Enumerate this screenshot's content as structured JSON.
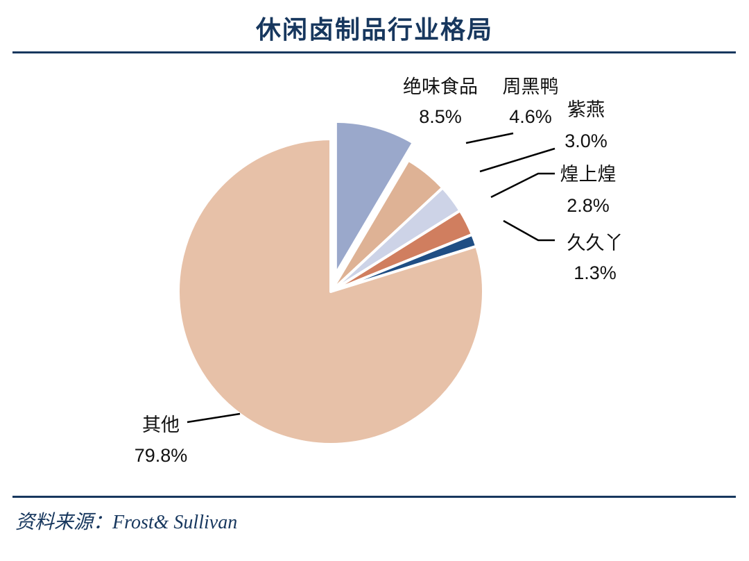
{
  "header": {
    "title": "休闲卤制品行业格局"
  },
  "footer": {
    "source_label": "资料来源：",
    "source_value": "Frost& Sullivan"
  },
  "chart_data": {
    "type": "pie",
    "slices": [
      {
        "label": "绝味食品",
        "value": 8.5,
        "value_label": "8.5%",
        "color": "#9aa8cb",
        "exploded": true
      },
      {
        "label": "周黑鸭",
        "value": 4.6,
        "value_label": "4.6%",
        "color": "#deb295",
        "exploded": false
      },
      {
        "label": "紫燕",
        "value": 3.0,
        "value_label": "3.0%",
        "color": "#cdd3e7",
        "exploded": false
      },
      {
        "label": "煌上煌",
        "value": 2.8,
        "value_label": "2.8%",
        "color": "#d07e5f",
        "exploded": false
      },
      {
        "label": "久久丫",
        "value": 1.3,
        "value_label": "1.3%",
        "color": "#1f4e84",
        "exploded": false
      },
      {
        "label": "其他",
        "value": 79.8,
        "value_label": "79.8%",
        "color": "#e7c1a8",
        "exploded": false
      }
    ],
    "start_angle_deg": 0,
    "direction": "clockwise",
    "legend": "none"
  }
}
